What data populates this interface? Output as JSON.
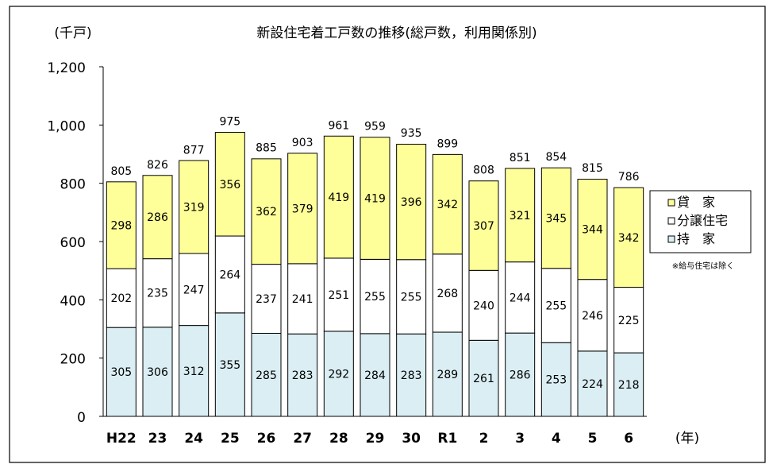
{
  "chart_data": {
    "type": "bar",
    "stacked": true,
    "title": "新設住宅着工戸数の推移(総戸数，利用関係別)",
    "ylabel": "(千戸)",
    "xlabel": "(年)",
    "ylim": [
      0,
      1200
    ],
    "yticks": [
      "0",
      "200",
      "400",
      "600",
      "800",
      "1,000",
      "1,200"
    ],
    "grid": false,
    "legend_position": "right",
    "note": "※給与住宅は除く",
    "categories": [
      "H22",
      "23",
      "24",
      "25",
      "26",
      "27",
      "28",
      "29",
      "30",
      "R1",
      "2",
      "3",
      "4",
      "5",
      "6"
    ],
    "series": [
      {
        "name": "持　家",
        "color": "#daeef3",
        "values": [
          305,
          306,
          312,
          355,
          285,
          283,
          292,
          284,
          283,
          289,
          261,
          286,
          253,
          224,
          218
        ]
      },
      {
        "name": "分譲住宅",
        "color": "#ffffff",
        "values": [
          202,
          235,
          247,
          264,
          237,
          241,
          251,
          255,
          255,
          268,
          240,
          244,
          255,
          246,
          225
        ]
      },
      {
        "name": "貸　家",
        "color": "#ffff99",
        "values": [
          298,
          286,
          319,
          356,
          362,
          379,
          419,
          419,
          396,
          342,
          307,
          321,
          345,
          344,
          342
        ]
      }
    ],
    "totals": [
      805,
      826,
      877,
      975,
      885,
      903,
      961,
      959,
      935,
      899,
      808,
      851,
      854,
      815,
      786
    ]
  }
}
